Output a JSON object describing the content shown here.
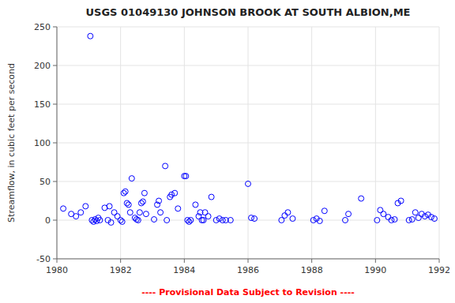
{
  "chart_data": {
    "type": "scatter",
    "title": "USGS 01049130 JOHNSON BROOK AT SOUTH ALBION,ME",
    "y_label": "Streamflow, in cubic feet per second",
    "annotations": [
      {
        "text": "---- Provisional Data Subject to Revision ----",
        "color": "red"
      }
    ],
    "xlim": [
      1980,
      1992
    ],
    "ylim": [
      -50,
      250
    ],
    "xticks": [
      1980,
      1982,
      1984,
      1986,
      1988,
      1990,
      1992
    ],
    "yticks": [
      -50,
      0,
      50,
      100,
      150,
      200,
      250
    ],
    "color": "blue",
    "marker": "open-circle",
    "grid": true,
    "x": [
      1980.2,
      1980.45,
      1980.6,
      1980.75,
      1980.9,
      1981.05,
      1981.1,
      1981.15,
      1981.2,
      1981.25,
      1981.3,
      1981.35,
      1981.5,
      1981.6,
      1981.65,
      1981.7,
      1981.8,
      1981.9,
      1982.0,
      1982.05,
      1982.1,
      1982.15,
      1982.2,
      1982.25,
      1982.3,
      1982.35,
      1982.45,
      1982.5,
      1982.55,
      1982.6,
      1982.65,
      1982.7,
      1982.75,
      1982.8,
      1983.05,
      1983.15,
      1983.2,
      1983.25,
      1983.4,
      1983.45,
      1983.55,
      1983.6,
      1983.7,
      1983.8,
      1984.0,
      1984.05,
      1984.1,
      1984.15,
      1984.2,
      1984.35,
      1984.45,
      1984.5,
      1984.55,
      1984.6,
      1984.65,
      1984.75,
      1984.85,
      1985.0,
      1985.1,
      1985.2,
      1985.3,
      1985.45,
      1986.0,
      1986.1,
      1986.2,
      1987.05,
      1987.15,
      1987.25,
      1987.4,
      1988.05,
      1988.15,
      1988.25,
      1988.4,
      1989.05,
      1989.15,
      1989.55,
      1990.05,
      1990.15,
      1990.25,
      1990.4,
      1990.5,
      1990.6,
      1990.7,
      1990.8,
      1991.05,
      1991.15,
      1991.25,
      1991.35,
      1991.45,
      1991.55,
      1991.65,
      1991.75,
      1991.85
    ],
    "values": [
      15,
      8,
      5,
      10,
      18,
      238,
      0,
      -2,
      1,
      -1,
      3,
      0,
      16,
      0,
      18,
      -3,
      10,
      5,
      0,
      -2,
      35,
      37,
      22,
      20,
      10,
      54,
      3,
      1,
      0,
      10,
      22,
      24,
      35,
      8,
      1,
      20,
      25,
      10,
      70,
      0,
      30,
      33,
      35,
      15,
      57,
      57,
      0,
      -2,
      0,
      20,
      5,
      10,
      0,
      0,
      10,
      5,
      30,
      0,
      2,
      0,
      0,
      0,
      47,
      3,
      2,
      0,
      6,
      10,
      2,
      0,
      2,
      -1,
      12,
      0,
      8,
      28,
      0,
      13,
      8,
      4,
      0,
      1,
      22,
      25,
      0,
      1,
      10,
      3,
      8,
      5,
      7,
      4,
      2
    ]
  }
}
